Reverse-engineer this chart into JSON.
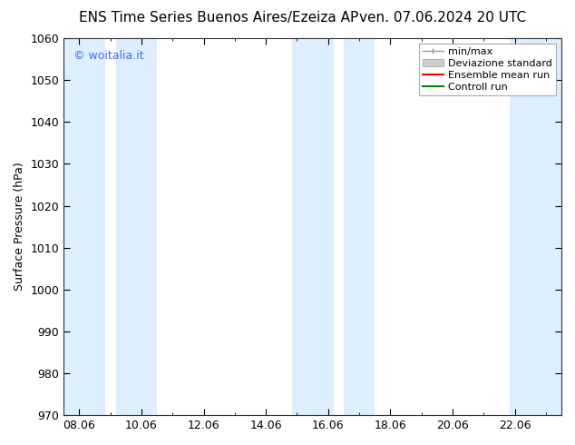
{
  "title_left": "ENS Time Series Buenos Aires/Ezeiza AP",
  "title_right": "ven. 07.06.2024 20 UTC",
  "ylabel": "Surface Pressure (hPa)",
  "ylim": [
    970,
    1060
  ],
  "yticks": [
    970,
    980,
    990,
    1000,
    1010,
    1020,
    1030,
    1040,
    1050,
    1060
  ],
  "xtick_labels": [
    "08.06",
    "10.06",
    "12.06",
    "14.06",
    "16.06",
    "18.06",
    "20.06",
    "22.06"
  ],
  "xtick_positions": [
    8,
    10,
    12,
    14,
    16,
    18,
    20,
    22
  ],
  "xmin": 7.5,
  "xmax": 23.5,
  "shaded_bands": [
    {
      "xstart": 7.5,
      "xend": 8.83,
      "color": "#ddeeff"
    },
    {
      "xstart": 9.17,
      "xend": 10.5,
      "color": "#ddeeff"
    },
    {
      "xstart": 14.83,
      "xend": 16.17,
      "color": "#ddeeff"
    },
    {
      "xstart": 16.5,
      "xend": 17.5,
      "color": "#ddeeff"
    },
    {
      "xstart": 21.83,
      "xend": 23.5,
      "color": "#ddeeff"
    }
  ],
  "legend_labels": [
    "min/max",
    "Deviazione standard",
    "Ensemble mean run",
    "Controll run"
  ],
  "legend_minmax_color": "#999999",
  "legend_devstd_color": "#cccccc",
  "legend_ens_color": "#ff0000",
  "legend_ctrl_color": "#008000",
  "watermark": "© woitalia.it",
  "watermark_color": "#4169E1",
  "background_color": "#ffffff",
  "title_fontsize": 11,
  "ylabel_fontsize": 9,
  "tick_fontsize": 9,
  "legend_fontsize": 8
}
